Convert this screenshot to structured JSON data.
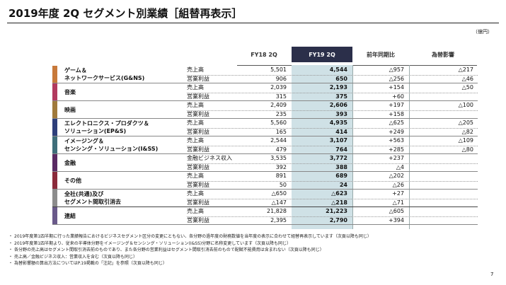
{
  "title": "2019年度 2Q セグメント別業績［組替再表示］",
  "unit": "（億円）",
  "headers": {
    "fy18": "FY18 2Q",
    "fy19": "FY19 2Q",
    "yoy": "前年同期比",
    "fx": "為替影響"
  },
  "colors": {
    "header_bg": "#2b2f4a",
    "highlight": "#cfe1e6"
  },
  "segments": [
    {
      "name_lines": [
        "ゲーム＆",
        "ネットワークサービス(G&NS)"
      ],
      "color": "#c8793a",
      "rows": [
        {
          "label": "売上高",
          "fy18": "5,501",
          "fy19": "4,544",
          "yoy": "△957",
          "fx": "△217"
        },
        {
          "label": "営業利益",
          "fy18": "906",
          "fy19": "650",
          "yoy": "△256",
          "fx": "△46"
        }
      ]
    },
    {
      "name_lines": [
        "音楽"
      ],
      "color": "#b23a5e",
      "rows": [
        {
          "label": "売上高",
          "fy18": "2,039",
          "fy19": "2,193",
          "yoy": "+154",
          "fx": "△50"
        },
        {
          "label": "営業利益",
          "fy18": "315",
          "fy19": "375",
          "yoy": "+60",
          "fx": ""
        }
      ]
    },
    {
      "name_lines": [
        "映画"
      ],
      "color": "#a07a3c",
      "rows": [
        {
          "label": "売上高",
          "fy18": "2,409",
          "fy19": "2,606",
          "yoy": "+197",
          "fx": "△100"
        },
        {
          "label": "営業利益",
          "fy18": "235",
          "fy19": "393",
          "yoy": "+158",
          "fx": ""
        }
      ]
    },
    {
      "name_lines": [
        "エレクトロニクス・プロダクツ＆",
        "ソリューション(EP&S)"
      ],
      "color": "#2e3f7a",
      "rows": [
        {
          "label": "売上高",
          "fy18": "5,560",
          "fy19": "4,935",
          "yoy": "△625",
          "fx": "△205"
        },
        {
          "label": "営業利益",
          "fy18": "165",
          "fy19": "414",
          "yoy": "+249",
          "fx": "△82"
        }
      ]
    },
    {
      "name_lines": [
        "イメージング＆",
        "センシング・ソリューション(I&SS)"
      ],
      "color": "#3f6e7a",
      "rows": [
        {
          "label": "売上高",
          "fy18": "2,544",
          "fy19": "3,107",
          "yoy": "+563",
          "fx": "△109"
        },
        {
          "label": "営業利益",
          "fy18": "479",
          "fy19": "764",
          "yoy": "+285",
          "fx": "△80"
        }
      ]
    },
    {
      "name_lines": [
        "金融"
      ],
      "color": "#5a2a63",
      "rows": [
        {
          "label": "金融ビジネス収入",
          "fy18": "3,535",
          "fy19": "3,772",
          "yoy": "+237",
          "fx": ""
        },
        {
          "label": "営業利益",
          "fy18": "392",
          "fy19": "388",
          "yoy": "△4",
          "fx": ""
        }
      ]
    },
    {
      "name_lines": [
        "その他"
      ],
      "color": "#8a2a3a",
      "rows": [
        {
          "label": "売上高",
          "fy18": "891",
          "fy19": "689",
          "yoy": "△202",
          "fx": ""
        },
        {
          "label": "営業利益",
          "fy18": "50",
          "fy19": "24",
          "yoy": "△26",
          "fx": ""
        }
      ]
    },
    {
      "name_lines": [
        "全社(共通)及び",
        "セグメント間取引消去"
      ],
      "color": "#8c8c8c",
      "rows": [
        {
          "label": "売上高",
          "fy18": "△650",
          "fy19": "△623",
          "yoy": "+27",
          "fx": ""
        },
        {
          "label": "営業利益",
          "fy18": "△147",
          "fy19": "△218",
          "yoy": "△71",
          "fx": ""
        }
      ]
    },
    {
      "name_lines": [
        "連結"
      ],
      "color": "#6a5a8a",
      "rows": [
        {
          "label": "売上高",
          "fy18": "21,828",
          "fy19": "21,223",
          "yoy": "△605",
          "fx": ""
        },
        {
          "label": "営業利益",
          "fy18": "2,395",
          "fy19": "2,790",
          "yoy": "+394",
          "fx": ""
        }
      ]
    }
  ],
  "notes": [
    "2019年度第1四半期に行った業績報告におけるビジネスセグメント区分の変更にともない、各分野の過年度の財務数値を当年度の表示に合わせて組替再表示しています（次頁以降も同じ）",
    "2019年度第1四半期より、従来の半導体分野をイメージング＆センシング・ソリューション(I&SS)分野に名称変更しています（次頁以降も同じ）",
    "各分野の売上高はセグメント間取引消去前のものであり、また各分野の営業利益はセグメント間取引消去前のもので配賦不能費用は含まれない（次頁以降も同じ）",
    "売上高／金融ビジネス収入：営業収入を含む（次頁以降も同じ）",
    "為替影響額の算出方法についてはP.19掲載の「注記」を参照（次頁以降も同じ）"
  ],
  "note_marker": "・",
  "page_number": "7"
}
